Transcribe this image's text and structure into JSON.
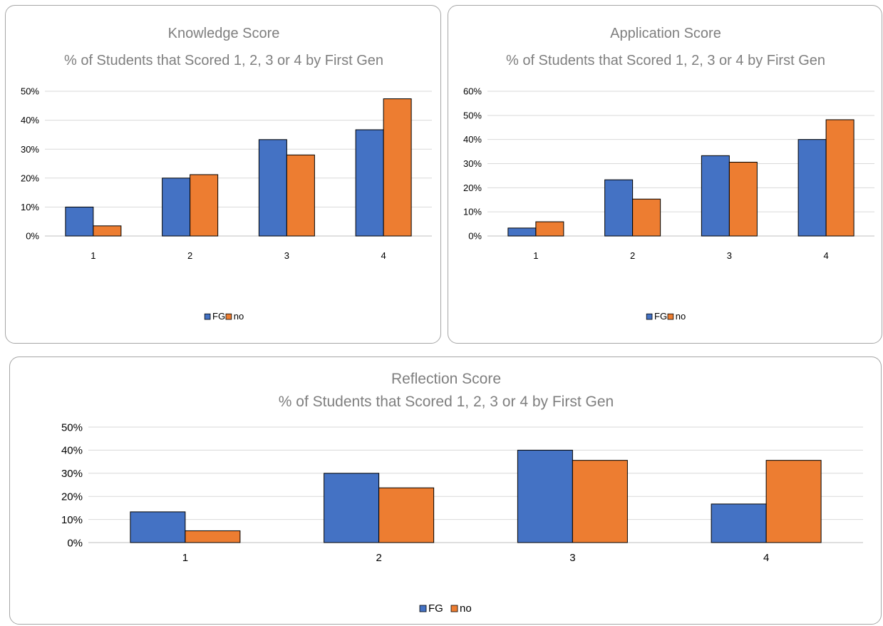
{
  "chart_data": [
    {
      "type": "bar",
      "title": "Knowledge Score",
      "subtitle": "% of Students that Scored 1, 2, 3 or 4 by First Gen",
      "categories": [
        "1",
        "2",
        "3",
        "4"
      ],
      "y_ticks": [
        "0%",
        "10%",
        "20%",
        "30%",
        "40%",
        "50%"
      ],
      "ylim": [
        0,
        50
      ],
      "grid": true,
      "legend": "bottom",
      "series": [
        {
          "name": "FG",
          "color": "#4472c4",
          "values": [
            10.0,
            20.0,
            33.3,
            36.7
          ]
        },
        {
          "name": "no",
          "color": "#ed7d31",
          "values": [
            3.5,
            21.2,
            28.0,
            47.4
          ]
        }
      ]
    },
    {
      "type": "bar",
      "title": "Application Score",
      "subtitle": "% of Students that Scored 1, 2, 3 or 4 by First Gen",
      "categories": [
        "1",
        "2",
        "3",
        "4"
      ],
      "y_ticks": [
        "0%",
        "10%",
        "20%",
        "30%",
        "40%",
        "50%",
        "60%"
      ],
      "ylim": [
        0,
        60
      ],
      "grid": true,
      "legend": "bottom",
      "series": [
        {
          "name": "FG",
          "color": "#4472c4",
          "values": [
            3.3,
            23.3,
            33.3,
            40.0
          ]
        },
        {
          "name": "no",
          "color": "#ed7d31",
          "values": [
            5.9,
            15.3,
            30.6,
            48.2
          ]
        }
      ]
    },
    {
      "type": "bar",
      "title": "Reflection Score",
      "subtitle": "% of Students that Scored 1, 2, 3 or 4 by First Gen",
      "categories": [
        "1",
        "2",
        "3",
        "4"
      ],
      "y_ticks": [
        "0%",
        "10%",
        "20%",
        "30%",
        "40%",
        "50%"
      ],
      "ylim": [
        0,
        50
      ],
      "grid": true,
      "legend": "bottom",
      "series": [
        {
          "name": "FG",
          "color": "#4472c4",
          "values": [
            13.3,
            30.0,
            40.0,
            16.7
          ]
        },
        {
          "name": "no",
          "color": "#ed7d31",
          "values": [
            5.1,
            23.7,
            35.6,
            35.6
          ]
        }
      ]
    }
  ]
}
